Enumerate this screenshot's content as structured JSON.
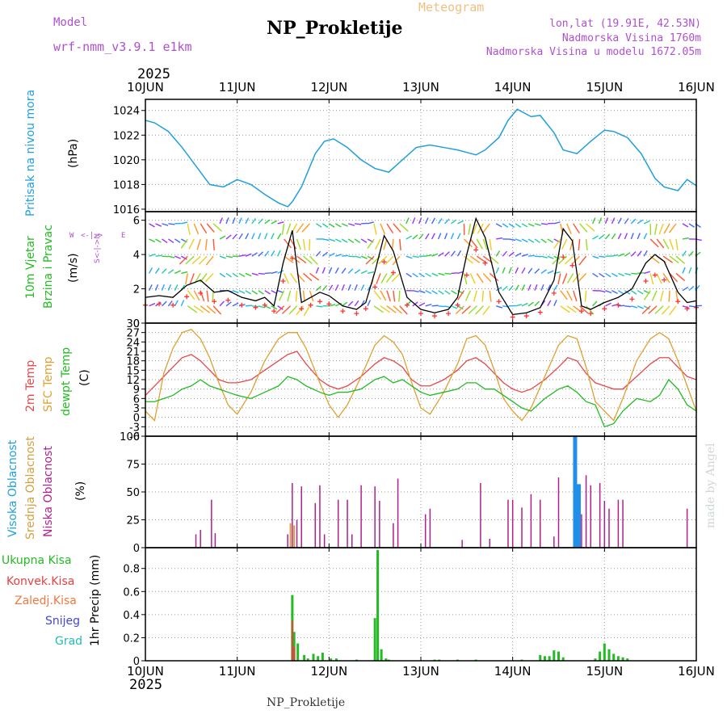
{
  "header": {
    "model_label": "Model",
    "model_name": "wrf-nmm_v3.9.1 e1km",
    "title": "NP_Prokletije",
    "product": "Meteogram",
    "location": "lon,lat (19.91E, 42.53N)",
    "elevation": "Nadmorska Visina 1760m",
    "model_elevation": "Nadmorska Visina u modelu 1672.05m",
    "year_top": "2025",
    "year_bottom": "2025"
  },
  "footer": {
    "station": "NP_Prokletije"
  },
  "credit": "made by Angel",
  "colors": {
    "pressure": "#1f9fe0",
    "temp2m": "#e8484a",
    "sfc_temp": "#e0a030",
    "dewpt": "#22bb22",
    "high_cloud": "#1f8fe8",
    "mid_cloud": "#d4a040",
    "low_cloud": "#b0208c",
    "precip": "#22bb22",
    "conv_precip": "#e84040",
    "snow": "#4444dd",
    "graupel": "#22bbbb",
    "wind_max": "#000000",
    "wind_obs": "#ff3333",
    "label_purple": "#b050d0",
    "label_product": "#f0c080"
  },
  "chart_data": [
    {
      "type": "line",
      "name": "pressure",
      "ylabel": "Pritisak na nivou mora",
      "unit": "(hPa)",
      "yticks": [
        "1016",
        "1018",
        "1020",
        "1022",
        "1024"
      ],
      "ylim": [
        1015.8,
        1024.9
      ],
      "x_days": [
        0,
        0.1,
        0.25,
        0.4,
        0.55,
        0.7,
        0.85,
        1.0,
        1.15,
        1.3,
        1.45,
        1.55,
        1.6,
        1.7,
        1.85,
        1.95,
        2.05,
        2.2,
        2.35,
        2.5,
        2.65,
        2.8,
        2.95,
        3.1,
        3.25,
        3.4,
        3.5,
        3.6,
        3.7,
        3.85,
        3.95,
        4.05,
        4.2,
        4.3,
        4.45,
        4.55,
        4.7,
        4.85,
        5.0,
        5.1,
        5.25,
        5.4,
        5.55,
        5.65,
        5.8,
        5.9,
        6.0
      ],
      "values": [
        1023.2,
        1023.0,
        1022.3,
        1021.0,
        1019.5,
        1018.0,
        1017.8,
        1018.4,
        1018.0,
        1017.2,
        1016.5,
        1016.2,
        1016.6,
        1017.8,
        1020.5,
        1021.5,
        1021.7,
        1021.0,
        1020.0,
        1019.3,
        1019.0,
        1020.0,
        1021.0,
        1021.2,
        1021.0,
        1020.8,
        1020.6,
        1020.4,
        1020.8,
        1021.8,
        1023.2,
        1024.1,
        1023.5,
        1023.6,
        1022.2,
        1020.8,
        1020.5,
        1021.5,
        1022.4,
        1022.3,
        1021.8,
        1020.5,
        1018.5,
        1017.8,
        1017.5,
        1018.4,
        1017.9
      ],
      "color": "pressure"
    },
    {
      "type": "line",
      "name": "wind",
      "ylabel": "10m Vjetar Brzina i Pravac",
      "unit": "(m/s)",
      "compass": "N E S W",
      "yticks": [
        "0",
        "2",
        "4",
        "6"
      ],
      "ylim": [
        0,
        6.5
      ],
      "x_days": [
        0,
        0.15,
        0.3,
        0.45,
        0.6,
        0.75,
        0.9,
        1.05,
        1.2,
        1.3,
        1.4,
        1.5,
        1.6,
        1.7,
        1.8,
        1.9,
        2.0,
        2.15,
        2.3,
        2.4,
        2.5,
        2.6,
        2.7,
        2.85,
        3.0,
        3.15,
        3.3,
        3.4,
        3.5,
        3.6,
        3.7,
        3.85,
        4.0,
        4.15,
        4.3,
        4.45,
        4.55,
        4.65,
        4.75,
        4.85,
        5.0,
        5.15,
        5.3,
        5.45,
        5.55,
        5.65,
        5.8,
        5.9,
        6.0
      ],
      "series": [
        {
          "values": [
            1.5,
            1.6,
            1.5,
            2.2,
            2.5,
            1.8,
            1.9,
            1.5,
            1.3,
            1.5,
            1.0,
            3.5,
            5.4,
            1.2,
            1.5,
            1.8,
            1.6,
            1.0,
            0.8,
            1.2,
            3.0,
            5.1,
            4.2,
            1.5,
            0.8,
            0.6,
            0.8,
            1.5,
            4.0,
            6.1,
            5.0,
            1.8,
            0.5,
            0.6,
            0.9,
            2.5,
            5.5,
            4.8,
            1.0,
            0.8,
            1.2,
            1.5,
            2.0,
            3.5,
            4.0,
            3.6,
            1.8,
            1.2,
            1.3
          ],
          "color": "wind_max"
        }
      ]
    },
    {
      "type": "line",
      "name": "temperature",
      "unit": "(C)",
      "yticks": [
        "-6",
        "-3",
        "0",
        "3",
        "6",
        "9",
        "12",
        "15",
        "18",
        "21",
        "24",
        "27",
        "30"
      ],
      "ylim": [
        -6,
        30
      ],
      "x_days": [
        0,
        0.1,
        0.2,
        0.3,
        0.4,
        0.5,
        0.6,
        0.7,
        0.8,
        0.9,
        1.0,
        1.15,
        1.3,
        1.45,
        1.55,
        1.65,
        1.75,
        1.9,
        2.0,
        2.1,
        2.2,
        2.35,
        2.5,
        2.6,
        2.7,
        2.8,
        2.9,
        3.0,
        3.1,
        3.25,
        3.4,
        3.5,
        3.6,
        3.7,
        3.8,
        3.9,
        4.0,
        4.1,
        4.2,
        4.35,
        4.5,
        4.6,
        4.7,
        4.8,
        4.9,
        5.0,
        5.1,
        5.2,
        5.35,
        5.5,
        5.6,
        5.7,
        5.8,
        5.9,
        6.0
      ],
      "series": [
        {
          "name": "2m Temp",
          "color": "temp2m",
          "values": [
            7,
            10,
            13,
            16,
            19,
            20,
            18,
            15,
            12,
            11,
            11,
            12,
            15,
            18,
            20,
            21,
            17,
            12,
            10,
            9,
            10,
            13,
            17,
            19,
            18,
            16,
            12,
            10,
            10,
            12,
            15,
            18,
            19,
            17,
            14,
            11,
            9,
            8,
            9,
            12,
            16,
            19,
            18,
            14,
            11,
            10,
            9,
            9,
            13,
            17,
            19,
            19,
            16,
            13,
            12
          ]
        },
        {
          "name": "SFC Temp",
          "color": "sfc_temp",
          "values": [
            2,
            -1,
            14,
            22,
            27,
            28,
            25,
            19,
            11,
            4,
            1,
            8,
            18,
            25,
            27,
            27,
            22,
            11,
            4,
            0,
            4,
            13,
            23,
            26,
            24,
            20,
            11,
            3,
            1,
            8,
            17,
            25,
            26,
            23,
            15,
            6,
            2,
            -1,
            3,
            13,
            23,
            26,
            25,
            16,
            5,
            2,
            -1,
            6,
            18,
            25,
            27,
            25,
            18,
            10,
            2
          ]
        },
        {
          "name": "dewpt Temp",
          "color": "dewpt",
          "values": [
            5,
            5,
            6,
            7,
            9,
            10,
            12,
            10,
            9,
            8,
            7,
            6,
            8,
            10,
            13,
            12,
            10,
            8,
            7,
            8,
            8,
            9,
            12,
            13,
            11,
            12,
            10,
            8,
            7,
            8,
            9,
            11,
            11,
            9,
            9,
            7,
            5,
            3,
            2,
            6,
            9,
            10,
            8,
            5,
            4,
            -3,
            -2,
            2,
            6,
            5,
            7,
            12,
            9,
            4,
            2
          ]
        }
      ]
    },
    {
      "type": "bar",
      "name": "cloud",
      "unit": "(%)",
      "yticks": [
        "0",
        "25",
        "50",
        "75",
        "100"
      ],
      "ylim": [
        0,
        100
      ],
      "series": [
        {
          "name": "Visoka Oblacnost",
          "color": "high_cloud",
          "x_days": [
            4.68,
            4.72
          ],
          "values": [
            100,
            57
          ]
        },
        {
          "name": "Srednja Oblacnost",
          "color": "mid_cloud",
          "x_days": [
            1.58,
            1.62
          ],
          "values": [
            22,
            20
          ]
        },
        {
          "name": "Niska Oblacnost",
          "color": "low_cloud",
          "x_days": [
            0.55,
            0.6,
            0.72,
            0.76,
            1.55,
            1.6,
            1.65,
            1.7,
            1.85,
            1.9,
            1.95,
            2.1,
            2.2,
            2.25,
            2.35,
            2.5,
            2.55,
            2.7,
            2.75,
            3.05,
            3.1,
            3.45,
            3.65,
            3.75,
            3.95,
            4.0,
            4.1,
            4.2,
            4.3,
            4.45,
            4.5,
            4.75,
            4.8,
            4.85,
            4.95,
            5.0,
            5.05,
            5.15,
            5.2,
            5.9
          ],
          "values": [
            12,
            16,
            43,
            13,
            12,
            58,
            25,
            55,
            40,
            56,
            12,
            43,
            43,
            12,
            56,
            55,
            42,
            22,
            62,
            30,
            35,
            7,
            58,
            8,
            43,
            43,
            36,
            48,
            43,
            10,
            63,
            30,
            65,
            56,
            58,
            42,
            35,
            43,
            43,
            35
          ]
        }
      ]
    },
    {
      "type": "bar",
      "name": "precip",
      "unit": "1hr Precip (mm)",
      "yticks": [
        "0",
        "0.2",
        "0.4",
        "0.6",
        "0.8"
      ],
      "ylim": [
        0,
        0.98
      ],
      "series": [
        {
          "name": "Ukupna Kisa",
          "color": "precip",
          "x_days": [
            1.6,
            1.62,
            1.66,
            1.73,
            1.77,
            1.83,
            1.88,
            1.93,
            2.02,
            2.08,
            2.3,
            2.5,
            2.53,
            2.57,
            2.62,
            2.65,
            3.15,
            3.2,
            3.4,
            3.6,
            4.1,
            4.3,
            4.35,
            4.4,
            4.45,
            4.5,
            4.55,
            4.9,
            4.95,
            5.0,
            5.05,
            5.1,
            5.15,
            5.2,
            5.25
          ],
          "values": [
            0.57,
            0.25,
            0.15,
            0.05,
            0.02,
            0.06,
            0.04,
            0.07,
            0.02,
            0.02,
            0.01,
            0.37,
            0.96,
            0.1,
            0.02,
            0.01,
            0.01,
            0.01,
            0.01,
            0.01,
            0.01,
            0.05,
            0.04,
            0.04,
            0.09,
            0.08,
            0.03,
            0.02,
            0.08,
            0.15,
            0.1,
            0.06,
            0.04,
            0.03,
            0.02
          ]
        },
        {
          "name": "Konvek.Kisa",
          "color": "conv_precip",
          "x_days": [
            1.6,
            1.62
          ],
          "values": [
            0.35,
            0.12
          ]
        },
        {
          "name": "Zaledj.Kisa",
          "color": "sfc_temp",
          "x_days": [],
          "values": []
        },
        {
          "name": "Snijeg",
          "color": "snow",
          "x_days": [],
          "values": []
        },
        {
          "name": "Grad",
          "color": "graupel",
          "x_days": [],
          "values": []
        }
      ]
    }
  ],
  "x_axis": {
    "type": "date",
    "start": "2025-06-10",
    "end": "2025-06-16",
    "tick_labels": [
      "10JUN",
      "11JUN",
      "12JUN",
      "13JUN",
      "14JUN",
      "15JUN",
      "16JUN"
    ]
  }
}
